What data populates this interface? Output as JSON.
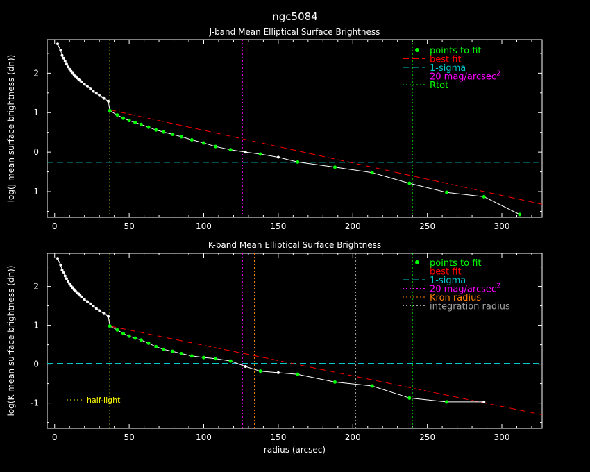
{
  "title": "ngc5084",
  "colors": {
    "background": "#000000",
    "axes": "#ffffff",
    "points": "#00ff00",
    "best_fit": "#ff0000",
    "sigma": "#00c8c8",
    "mag20": "#ff00ff",
    "rtot": "#00ff00",
    "kron": "#ff8000",
    "integration": "#a0a0a0",
    "half_light": "#ffff00"
  },
  "chart_data": [
    {
      "type": "line",
      "title": "J-band Mean Elliptical Surface Brightness",
      "xlabel": "",
      "ylabel": "log(J mean surface brightness (dn))",
      "xlim": [
        -5,
        327
      ],
      "ylim": [
        -1.65,
        2.85
      ],
      "xticks": [
        0,
        50,
        100,
        150,
        200,
        250,
        300
      ],
      "yticks": [
        -1,
        0,
        1,
        2
      ],
      "profile": {
        "x": [
          2,
          4,
          5,
          6,
          7,
          8,
          9,
          10,
          11,
          12,
          13,
          14,
          15,
          16,
          17,
          18,
          20,
          22,
          24,
          26,
          28,
          30,
          33,
          36,
          37,
          42,
          46,
          50,
          54,
          58,
          63,
          68,
          73,
          79,
          85,
          92,
          100,
          108,
          118,
          128,
          138,
          150,
          163,
          188,
          213,
          238,
          263,
          288,
          312
        ],
        "y": [
          2.74,
          2.58,
          2.45,
          2.38,
          2.3,
          2.23,
          2.16,
          2.1,
          2.05,
          2.0,
          1.96,
          1.92,
          1.88,
          1.85,
          1.82,
          1.78,
          1.72,
          1.66,
          1.6,
          1.54,
          1.49,
          1.43,
          1.36,
          1.29,
          1.05,
          0.94,
          0.86,
          0.8,
          0.75,
          0.7,
          0.63,
          0.56,
          0.51,
          0.45,
          0.39,
          0.31,
          0.23,
          0.14,
          0.06,
          0.0,
          -0.05,
          -0.13,
          -0.25,
          -0.38,
          -0.52,
          -0.79,
          -1.02,
          -1.13,
          -1.58
        ]
      },
      "fit_points": {
        "x": [
          37,
          42,
          46,
          50,
          54,
          58,
          63,
          68,
          73,
          79,
          85,
          92,
          100,
          108,
          118,
          138,
          163,
          188,
          213,
          238,
          263,
          288,
          312
        ],
        "y": [
          1.05,
          0.94,
          0.86,
          0.8,
          0.75,
          0.7,
          0.63,
          0.56,
          0.51,
          0.45,
          0.39,
          0.31,
          0.23,
          0.14,
          0.06,
          -0.05,
          -0.25,
          -0.38,
          -0.52,
          -0.79,
          -1.02,
          -1.13,
          -1.58
        ]
      },
      "best_fit": {
        "x": [
          37,
          327
        ],
        "y": [
          1.07,
          -1.32
        ]
      },
      "sigma_level": -0.26,
      "vlines": [
        {
          "key": "rtot",
          "x": 240
        },
        {
          "key": "mag20",
          "x": 126
        },
        {
          "key": "half_light",
          "x": 37
        }
      ],
      "legend": {
        "placement": "top-right",
        "entries": [
          {
            "key": "points",
            "label": "points to fit"
          },
          {
            "key": "best_fit",
            "label": "best fit"
          },
          {
            "key": "sigma",
            "label": "1-sigma"
          },
          {
            "key": "mag20",
            "label": "20 mag/arcsec",
            "sup": "2"
          },
          {
            "key": "rtot",
            "label": "Rtot"
          }
        ]
      }
    },
    {
      "type": "line",
      "title": "K-band Mean Elliptical Surface Brightness",
      "xlabel": "radius (arcsec)",
      "ylabel": "log(K mean surface brightness (dn))",
      "xlim": [
        -5,
        327
      ],
      "ylim": [
        -1.65,
        2.85
      ],
      "xticks": [
        0,
        50,
        100,
        150,
        200,
        250,
        300
      ],
      "yticks": [
        -1,
        0,
        1,
        2
      ],
      "profile": {
        "x": [
          2,
          4,
          5,
          6,
          7,
          8,
          9,
          10,
          11,
          12,
          13,
          14,
          15,
          16,
          17,
          18,
          20,
          22,
          24,
          26,
          28,
          30,
          33,
          36,
          37,
          42,
          46,
          50,
          54,
          58,
          63,
          68,
          73,
          79,
          85,
          92,
          100,
          108,
          118,
          128,
          138,
          150,
          163,
          188,
          213,
          238,
          263,
          288
        ],
        "y": [
          2.72,
          2.55,
          2.42,
          2.35,
          2.27,
          2.2,
          2.13,
          2.07,
          2.02,
          1.97,
          1.92,
          1.88,
          1.84,
          1.81,
          1.77,
          1.73,
          1.67,
          1.61,
          1.55,
          1.49,
          1.43,
          1.38,
          1.3,
          1.23,
          0.98,
          0.88,
          0.79,
          0.72,
          0.67,
          0.62,
          0.54,
          0.45,
          0.38,
          0.33,
          0.27,
          0.21,
          0.17,
          0.14,
          0.08,
          -0.06,
          -0.18,
          -0.22,
          -0.26,
          -0.46,
          -0.56,
          -0.87,
          -0.97,
          -0.97
        ]
      },
      "fit_points": {
        "x": [
          37,
          42,
          46,
          50,
          54,
          58,
          63,
          68,
          73,
          79,
          85,
          92,
          100,
          108,
          118,
          138,
          163,
          188,
          213,
          238,
          263
        ],
        "y": [
          0.98,
          0.88,
          0.79,
          0.72,
          0.67,
          0.62,
          0.54,
          0.45,
          0.38,
          0.33,
          0.27,
          0.21,
          0.17,
          0.14,
          0.08,
          -0.18,
          -0.26,
          -0.46,
          -0.56,
          -0.87,
          -0.97
        ]
      },
      "best_fit": {
        "x": [
          37,
          327
        ],
        "y": [
          0.98,
          -1.3
        ]
      },
      "sigma_level": 0.02,
      "vlines": [
        {
          "key": "rtot",
          "x": 240
        },
        {
          "key": "mag20",
          "x": 126
        },
        {
          "key": "kron",
          "x": 134
        },
        {
          "key": "integration",
          "x": 202
        },
        {
          "key": "half_light",
          "x": 37
        }
      ],
      "legend": {
        "placement": "top-right",
        "entries": [
          {
            "key": "points",
            "label": "points to fit"
          },
          {
            "key": "best_fit",
            "label": "best fit"
          },
          {
            "key": "sigma",
            "label": "1-sigma"
          },
          {
            "key": "mag20",
            "label": "20 mag/arcsec",
            "sup": "2"
          },
          {
            "key": "kron",
            "label": "Kron radius"
          },
          {
            "key": "integration",
            "label": "integration radius"
          }
        ]
      },
      "annotation": {
        "key": "half_light",
        "label": "half-light"
      }
    }
  ]
}
